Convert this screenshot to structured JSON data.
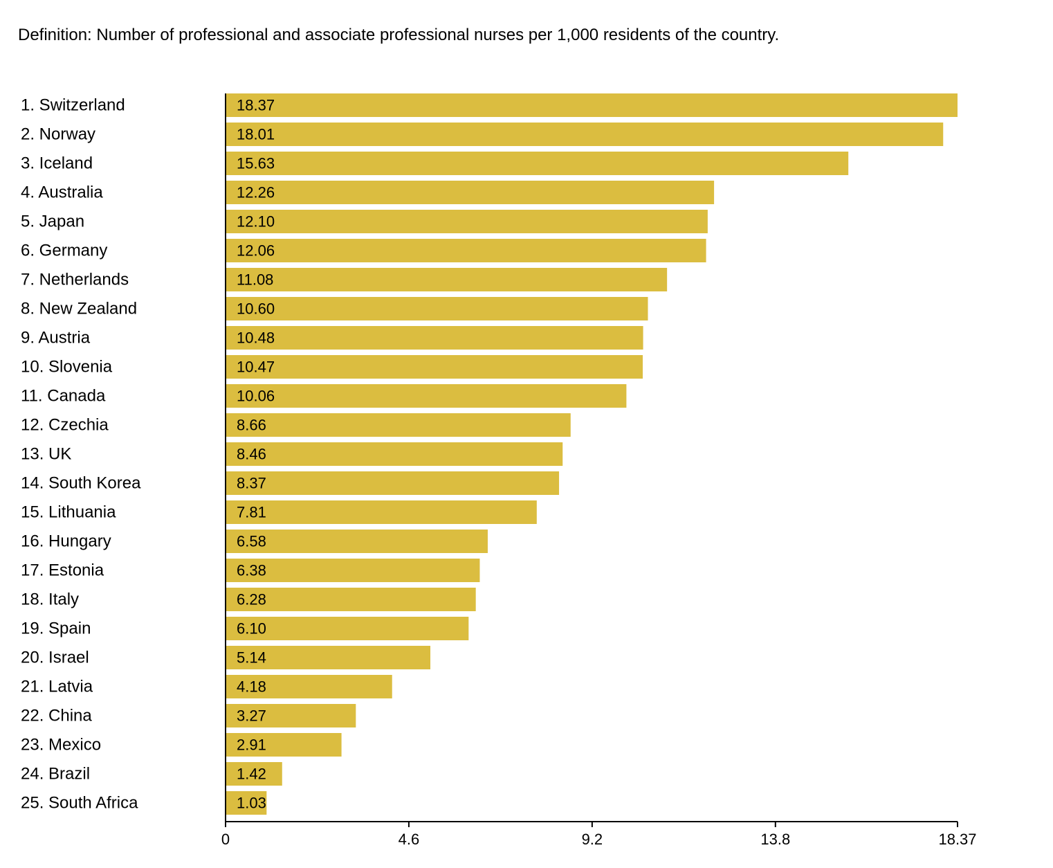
{
  "definition": "Definition: Number of professional and associate professional nurses per 1,000 residents of the country.",
  "colors": {
    "bar": "#dbbd40",
    "axis": "#000000",
    "text": "#000000",
    "background": "#ffffff"
  },
  "chart_data": {
    "type": "bar",
    "orientation": "horizontal",
    "title": "",
    "xlabel": "",
    "ylabel": "",
    "xlim": [
      0,
      18.37
    ],
    "grid": false,
    "legend": "none",
    "x_ticks": [
      "0",
      "4.6",
      "9.2",
      "13.8",
      "18.37"
    ],
    "categories": [
      "1. Switzerland",
      "2. Norway",
      "3. Iceland",
      "4. Australia",
      "5. Japan",
      "6. Germany",
      "7. Netherlands",
      "8. New Zealand",
      "9. Austria",
      "10. Slovenia",
      "11. Canada",
      "12. Czechia",
      "13. UK",
      "14. South Korea",
      "15. Lithuania",
      "16. Hungary",
      "17. Estonia",
      "18. Italy",
      "19. Spain",
      "20. Israel",
      "21. Latvia",
      "22. China",
      "23. Mexico",
      "24. Brazil",
      "25. South Africa"
    ],
    "values": [
      18.37,
      18.01,
      15.63,
      12.26,
      12.1,
      12.06,
      11.08,
      10.6,
      10.48,
      10.47,
      10.06,
      8.66,
      8.46,
      8.37,
      7.81,
      6.58,
      6.38,
      6.28,
      6.1,
      5.14,
      4.18,
      3.27,
      2.91,
      1.42,
      1.03
    ],
    "value_labels": [
      "18.37",
      "18.01",
      "15.63",
      "12.26",
      "12.10",
      "12.06",
      "11.08",
      "10.60",
      "10.48",
      "10.47",
      "10.06",
      "8.66",
      "8.46",
      "8.37",
      "7.81",
      "6.58",
      "6.38",
      "6.28",
      "6.10",
      "5.14",
      "4.18",
      "3.27",
      "2.91",
      "1.42",
      "1.03"
    ]
  }
}
